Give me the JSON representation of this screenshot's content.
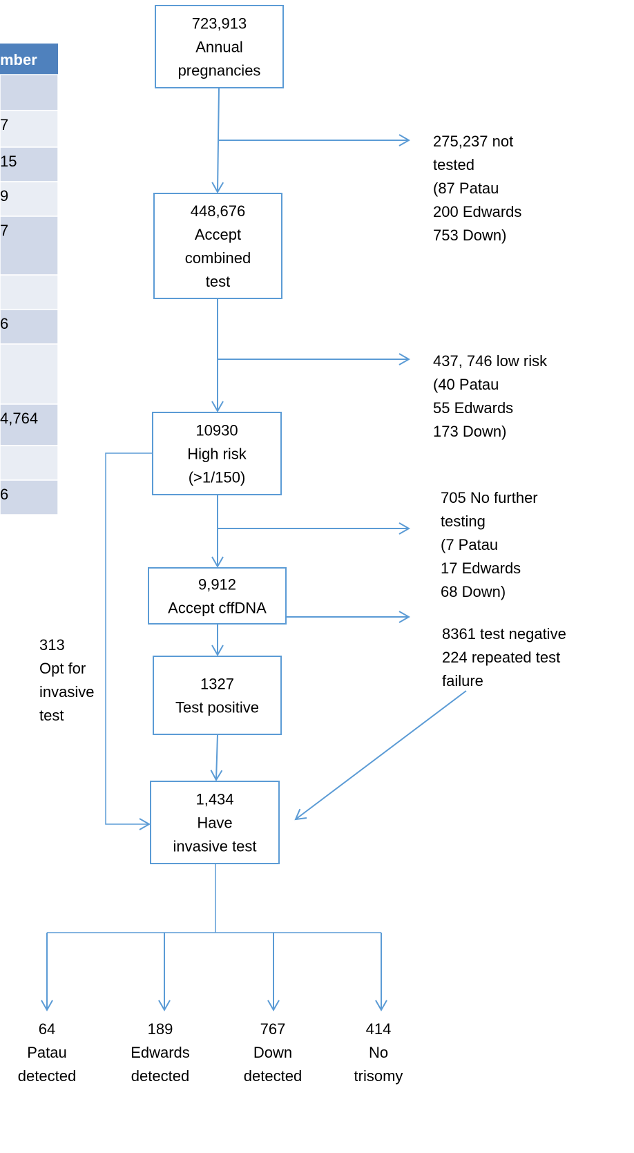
{
  "table": {
    "header": "mber",
    "cells": [
      "7",
      "15",
      "9",
      "7",
      "6",
      "4,764",
      "6"
    ]
  },
  "nodes": [
    {
      "lines": [
        "723,913",
        "Annual",
        "pregnancies"
      ]
    },
    {
      "lines": [
        "448,676",
        "Accept",
        "combined",
        "test"
      ]
    },
    {
      "lines": [
        "10930",
        "High risk",
        "(>1/150)"
      ]
    },
    {
      "lines": [
        "9,912",
        "Accept cffDNA"
      ]
    },
    {
      "lines": [
        "1327",
        "Test positive"
      ]
    },
    {
      "lines": [
        "1,434",
        "Have",
        "invasive test"
      ]
    }
  ],
  "side_notes": [
    {
      "lines": [
        "275,237 not",
        "tested",
        "(87 Patau",
        "200 Edwards",
        "753 Down)"
      ]
    },
    {
      "lines": [
        "437, 746 low risk",
        "(40 Patau",
        "55 Edwards",
        "173 Down)"
      ]
    },
    {
      "lines": [
        "705 No further",
        "testing",
        "(7 Patau",
        "17 Edwards",
        "68 Down)"
      ]
    },
    {
      "lines": [
        "8361 test negative",
        "224 repeated test",
        "failure"
      ]
    },
    {
      "lines": [
        "313",
        "Opt for",
        "invasive",
        "test"
      ]
    }
  ],
  "outcomes": [
    {
      "lines": [
        "64",
        "Patau",
        "detected"
      ]
    },
    {
      "lines": [
        "189",
        "Edwards",
        "detected"
      ]
    },
    {
      "lines": [
        "767",
        "Down",
        "detected"
      ]
    },
    {
      "lines": [
        "414",
        "No",
        "trisomy"
      ]
    }
  ]
}
